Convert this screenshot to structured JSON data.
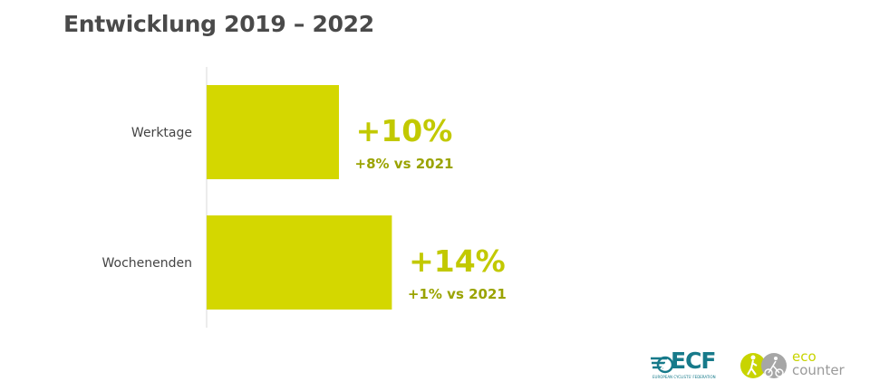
{
  "title": "Entwicklung 2019 – 2022",
  "colors": {
    "bar": "#d4d700",
    "label": "#c2c900",
    "sublabel": "#9aa300",
    "axis": "#d9d9d9"
  },
  "chart_data": {
    "type": "bar",
    "orientation": "horizontal",
    "title": "Entwicklung 2019 – 2022",
    "categories": [
      "Werktage",
      "Wochenenden"
    ],
    "values": [
      10,
      14
    ],
    "value_labels": [
      "+10%",
      "+14%"
    ],
    "sub_labels": [
      "+8% vs 2021",
      "+1% vs 2021"
    ],
    "xlim": [
      0,
      40
    ],
    "grid": false,
    "legend": "none"
  },
  "logos": {
    "ecf": {
      "name": "ECF",
      "subtitle": "EUROPEAN CYCLISTS' FEDERATION",
      "icon": "ecf-wing-icon"
    },
    "eco": {
      "line1": "eco",
      "line2": "counter",
      "icon": "eco-counter-figures-icon"
    }
  }
}
